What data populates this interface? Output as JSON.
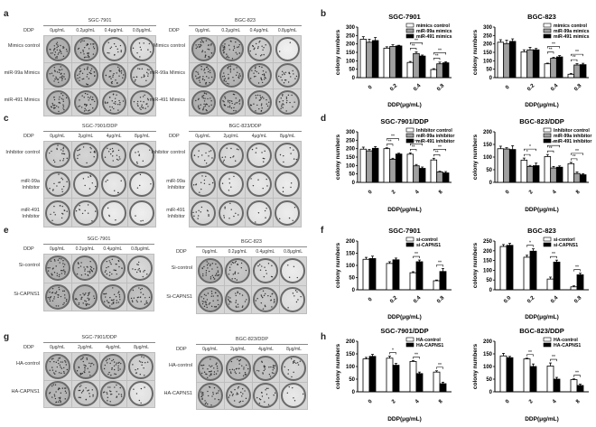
{
  "panels": {
    "a": {
      "letter": "a",
      "grids": [
        {
          "title": "SGC-7901",
          "ddp_label": "DDP",
          "cols": [
            "0μg/mL",
            "0.2μg/mL",
            "0.4μg/mL",
            "0.8μg/mL"
          ],
          "rows": [
            "Mimics control",
            "miR-99a Mimics",
            "miR-491 Mimics"
          ],
          "density": [
            [
              0.8,
              0.75,
              0.35,
              0.25
            ],
            [
              0.8,
              0.75,
              0.7,
              0.45
            ],
            [
              0.75,
              0.7,
              0.6,
              0.55
            ]
          ]
        },
        {
          "title": "BGC-823",
          "ddp_label": "DDP",
          "cols": [
            "0μg/mL",
            "0.2μg/mL",
            "0.4μg/mL",
            "0.8μg/mL"
          ],
          "rows": [
            "Mimics control",
            "miR-99a Mimics",
            "miR-491 Mimics"
          ],
          "density": [
            [
              0.8,
              0.75,
              0.45,
              0.05
            ],
            [
              0.8,
              0.75,
              0.65,
              0.5
            ],
            [
              0.8,
              0.75,
              0.65,
              0.55
            ]
          ]
        }
      ]
    },
    "c": {
      "letter": "c",
      "grids": [
        {
          "title": "SGC-7901/DDP",
          "ddp_label": "DDP",
          "cols": [
            "0μg/mL",
            "2μg/mL",
            "4μg/mL",
            "8μg/mL"
          ],
          "rows": [
            "Inhibitor control",
            "miR-99a Inhibitor",
            "miR-491 Inhibitor"
          ],
          "density": [
            [
              0.45,
              0.4,
              0.4,
              0.2
            ],
            [
              0.35,
              0.2,
              0.15,
              0.1
            ],
            [
              0.35,
              0.25,
              0.1,
              0.08
            ]
          ]
        },
        {
          "title": "BGC-823/DDP",
          "ddp_label": "DDP",
          "cols": [
            "0μg/mL",
            "2μg/mL",
            "4μg/mL",
            "8μg/mL"
          ],
          "rows": [
            "Inhibitor control",
            "miR-99a Inhibitor",
            "miR-491 Inhibitor"
          ],
          "density": [
            [
              0.3,
              0.3,
              0.2,
              0.2
            ],
            [
              0.3,
              0.15,
              0.15,
              0.1
            ],
            [
              0.3,
              0.25,
              0.12,
              0.1
            ]
          ]
        }
      ]
    },
    "e": {
      "letter": "e",
      "grids": [
        {
          "title": "SGC-7901",
          "ddp_label": "DDP",
          "cols": [
            "0μg/mL",
            "0.2μg/mL",
            "0.4μg/mL",
            "0.8μg/mL"
          ],
          "rows": [
            "Si-control",
            "Si-CAPNS1"
          ],
          "density": [
            [
              0.8,
              0.7,
              0.6,
              0.35
            ],
            [
              0.8,
              0.75,
              0.7,
              0.6
            ]
          ]
        },
        {
          "title": "BGC-823",
          "ddp_label": "DDP",
          "cols": [
            "0μg/mL",
            "0.2μg/mL",
            "0.4μg/mL",
            "0.8μg/mL"
          ],
          "rows": [
            "Si-control",
            "Si-CAPNS1"
          ],
          "density": [
            [
              0.8,
              0.55,
              0.3,
              0.1
            ],
            [
              0.8,
              0.6,
              0.55,
              0.2
            ]
          ]
        }
      ]
    },
    "g": {
      "letter": "g",
      "grids": [
        {
          "title": "SGC-7901/DDP",
          "ddp_label": "DDP",
          "cols": [
            "0μg/mL",
            "2μg/mL",
            "4μg/mL",
            "8μg/mL"
          ],
          "rows": [
            "HA-control",
            "HA-CAPNS1"
          ],
          "density": [
            [
              0.75,
              0.75,
              0.7,
              0.4
            ],
            [
              0.75,
              0.5,
              0.55,
              0.15
            ]
          ]
        },
        {
          "title": "BGC-823/DDP",
          "ddp_label": "DDP",
          "cols": [
            "0μg/mL",
            "2μg/mL",
            "4μg/mL",
            "8μg/mL"
          ],
          "rows": [
            "HA-control",
            "HA-CAPNS1"
          ],
          "density": [
            [
              0.75,
              0.7,
              0.6,
              0.35
            ],
            [
              0.7,
              0.55,
              0.4,
              0.15
            ]
          ]
        }
      ]
    },
    "b": {
      "letter": "b"
    },
    "d": {
      "letter": "d"
    },
    "f": {
      "letter": "f"
    },
    "h": {
      "letter": "h"
    }
  },
  "chart_data": [
    {
      "id": "b1",
      "panel": "b",
      "type": "bar",
      "title": "SGC-7901",
      "xlabel": "DDP(μg/mL)",
      "ylabel": "colony numbers",
      "ylim": [
        0,
        300
      ],
      "yticks": [
        0,
        50,
        100,
        150,
        200,
        250,
        300
      ],
      "categories": [
        "0",
        "0.2",
        "0.4",
        "0.8"
      ],
      "legend_position": "top-right",
      "series": [
        {
          "name": "mimics control",
          "color": "#ffffff",
          "values": [
            228,
            175,
            90,
            48
          ],
          "errors": [
            15,
            8,
            6,
            5
          ]
        },
        {
          "name": "miR-99a mimics",
          "color": "#a0a0a0",
          "values": [
            210,
            185,
            143,
            82
          ],
          "errors": [
            18,
            10,
            10,
            10
          ]
        },
        {
          "name": "miR-491 mimics",
          "color": "#000000",
          "values": [
            220,
            188,
            128,
            88
          ],
          "errors": [
            18,
            4,
            6,
            6
          ]
        }
      ],
      "annotations": [
        {
          "x": "0.4",
          "text": "**"
        },
        {
          "x": "0.4",
          "text": "**"
        },
        {
          "x": "0.8",
          "text": "**"
        },
        {
          "x": "0.8",
          "text": "**"
        }
      ]
    },
    {
      "id": "b2",
      "panel": "b",
      "type": "bar",
      "title": "BGC-823",
      "xlabel": "DDP(μg/mL)",
      "ylabel": "colony numbers",
      "ylim": [
        0,
        300
      ],
      "yticks": [
        0,
        50,
        100,
        150,
        200,
        250,
        300
      ],
      "categories": [
        "0",
        "0.2",
        "0.4",
        "0.8"
      ],
      "legend_position": "top-right",
      "series": [
        {
          "name": "mimics control",
          "color": "#ffffff",
          "values": [
            210,
            153,
            82,
            20
          ],
          "errors": [
            15,
            12,
            4,
            5
          ]
        },
        {
          "name": "miR-99a mimics",
          "color": "#a0a0a0",
          "values": [
            202,
            165,
            115,
            75
          ],
          "errors": [
            20,
            15,
            5,
            8
          ]
        },
        {
          "name": "miR-491 mimics",
          "color": "#000000",
          "values": [
            215,
            165,
            123,
            77
          ],
          "errors": [
            15,
            8,
            8,
            8
          ]
        }
      ],
      "annotations": [
        {
          "x": "0.4",
          "text": "**"
        },
        {
          "x": "0.4",
          "text": "**"
        },
        {
          "x": "0.8",
          "text": "**"
        },
        {
          "x": "0.8",
          "text": "**"
        }
      ]
    },
    {
      "id": "d1",
      "panel": "d",
      "type": "bar",
      "title": "SGC-7901/DDP",
      "xlabel": "DDP(μg/mL)",
      "ylabel": "colony numbers",
      "ylim": [
        0,
        300
      ],
      "yticks": [
        0,
        50,
        100,
        150,
        200,
        250,
        300
      ],
      "categories": [
        "0",
        "2",
        "4",
        "8"
      ],
      "legend_position": "top-right",
      "series": [
        {
          "name": "Inhibitor control",
          "color": "#ffffff",
          "values": [
            197,
            200,
            167,
            133
          ],
          "errors": [
            12,
            5,
            8,
            10
          ]
        },
        {
          "name": "miR-99a inhibitor",
          "color": "#a0a0a0",
          "values": [
            187,
            137,
            98,
            62
          ],
          "errors": [
            8,
            6,
            8,
            4
          ]
        },
        {
          "name": "miR-491 inhibitor",
          "color": "#000000",
          "values": [
            202,
            168,
            83,
            56
          ],
          "errors": [
            10,
            5,
            8,
            8
          ]
        }
      ],
      "annotations": [
        {
          "x": "2",
          "text": "**"
        },
        {
          "x": "2",
          "text": "**"
        },
        {
          "x": "4",
          "text": "**"
        },
        {
          "x": "4",
          "text": "**"
        },
        {
          "x": "8",
          "text": "**"
        },
        {
          "x": "8",
          "text": "**"
        }
      ]
    },
    {
      "id": "d2",
      "panel": "d",
      "type": "bar",
      "title": "BGC-823/DDP",
      "xlabel": "DDP(μg/mL)",
      "ylabel": "colony numbers",
      "ylim": [
        0,
        200
      ],
      "yticks": [
        0,
        50,
        100,
        150,
        200
      ],
      "categories": [
        "0",
        "2",
        "4",
        "8"
      ],
      "legend_position": "top-right",
      "series": [
        {
          "name": "Inhibitor control",
          "color": "#ffffff",
          "values": [
            133,
            88,
            102,
            74
          ],
          "errors": [
            10,
            8,
            8,
            5
          ]
        },
        {
          "name": "miR-99a inhibitor",
          "color": "#a0a0a0",
          "values": [
            132,
            63,
            57,
            35
          ],
          "errors": [
            5,
            4,
            6,
            6
          ]
        },
        {
          "name": "miR-491 inhibitor",
          "color": "#000000",
          "values": [
            130,
            66,
            60,
            30
          ],
          "errors": [
            15,
            10,
            5,
            4
          ]
        }
      ],
      "annotations": [
        {
          "x": "2",
          "text": "*"
        },
        {
          "x": "2",
          "text": "*"
        },
        {
          "x": "4",
          "text": "**"
        },
        {
          "x": "4",
          "text": "**"
        },
        {
          "x": "8",
          "text": "**"
        },
        {
          "x": "8",
          "text": "**"
        }
      ]
    },
    {
      "id": "f1",
      "panel": "f",
      "type": "bar",
      "title": "SGC-7901",
      "xlabel": "DDP(μg/mL)",
      "ylabel": "colony numbers",
      "ylim": [
        0,
        200
      ],
      "yticks": [
        0,
        50,
        100,
        150,
        200
      ],
      "categories": [
        "0",
        "0.2",
        "0.4",
        "0.8"
      ],
      "legend_position": "top-right",
      "series": [
        {
          "name": "si-control",
          "color": "#ffffff",
          "values": [
            125,
            108,
            70,
            37
          ],
          "errors": [
            8,
            7,
            4,
            3
          ]
        },
        {
          "name": "si-CAPNS1",
          "color": "#000000",
          "values": [
            128,
            123,
            115,
            75
          ],
          "errors": [
            10,
            7,
            7,
            12
          ]
        }
      ],
      "annotations": [
        {
          "x": "0.4",
          "text": "**"
        },
        {
          "x": "0.8",
          "text": "**"
        }
      ]
    },
    {
      "id": "f2",
      "panel": "f",
      "type": "bar",
      "title": "BGC-823",
      "xlabel": "DDP(μg/mL)",
      "ylabel": "colony numbers",
      "ylim": [
        0,
        250
      ],
      "yticks": [
        0,
        50,
        100,
        150,
        200,
        250
      ],
      "categories": [
        "0.0",
        "0.2",
        "0.4",
        "0.8"
      ],
      "legend_position": "top-right",
      "series": [
        {
          "name": "si-contorl",
          "color": "#ffffff",
          "values": [
            222,
            167,
            55,
            15
          ],
          "errors": [
            10,
            10,
            10,
            5
          ]
        },
        {
          "name": "si-CAPNS1",
          "color": "#000000",
          "values": [
            228,
            198,
            142,
            77
          ],
          "errors": [
            10,
            12,
            10,
            8
          ]
        }
      ],
      "annotations": [
        {
          "x": "0.2",
          "text": "*"
        },
        {
          "x": "0.4",
          "text": "**"
        },
        {
          "x": "0.8",
          "text": "**"
        }
      ]
    },
    {
      "id": "h1",
      "panel": "h",
      "type": "bar",
      "title": "SGC-7901/DDP",
      "xlabel": "DDP(μg/mL)",
      "ylabel": "colony numbers",
      "ylim": [
        0,
        200
      ],
      "yticks": [
        0,
        50,
        100,
        150,
        200
      ],
      "categories": [
        "0",
        "2",
        "4",
        "8"
      ],
      "legend_position": "top-right",
      "series": [
        {
          "name": "HA-control",
          "color": "#ffffff",
          "values": [
            130,
            133,
            120,
            78
          ],
          "errors": [
            6,
            8,
            3,
            5
          ]
        },
        {
          "name": "HA-CAPNS1",
          "color": "#000000",
          "values": [
            140,
            105,
            72,
            32
          ],
          "errors": [
            8,
            7,
            6,
            6
          ]
        }
      ],
      "annotations": [
        {
          "x": "2",
          "text": "*"
        },
        {
          "x": "4",
          "text": "**"
        },
        {
          "x": "8",
          "text": "**"
        }
      ]
    },
    {
      "id": "h2",
      "panel": "h",
      "type": "bar",
      "title": "BGC-823/DDP",
      "xlabel": "DDP(μg/mL)",
      "ylabel": "colony numbers",
      "ylim": [
        0,
        200
      ],
      "yticks": [
        0,
        50,
        100,
        150,
        200
      ],
      "categories": [
        "0",
        "2",
        "4",
        "8"
      ],
      "legend_position": "top-right",
      "series": [
        {
          "name": "HA-control",
          "color": "#ffffff",
          "values": [
            142,
            130,
            102,
            48
          ],
          "errors": [
            10,
            3,
            12,
            3
          ]
        },
        {
          "name": "HA-CAPNS1",
          "color": "#000000",
          "values": [
            135,
            100,
            50,
            25
          ],
          "errors": [
            5,
            10,
            7,
            5
          ]
        }
      ],
      "annotations": [
        {
          "x": "2",
          "text": "**"
        },
        {
          "x": "4",
          "text": "**"
        },
        {
          "x": "8",
          "text": "**"
        }
      ]
    }
  ]
}
